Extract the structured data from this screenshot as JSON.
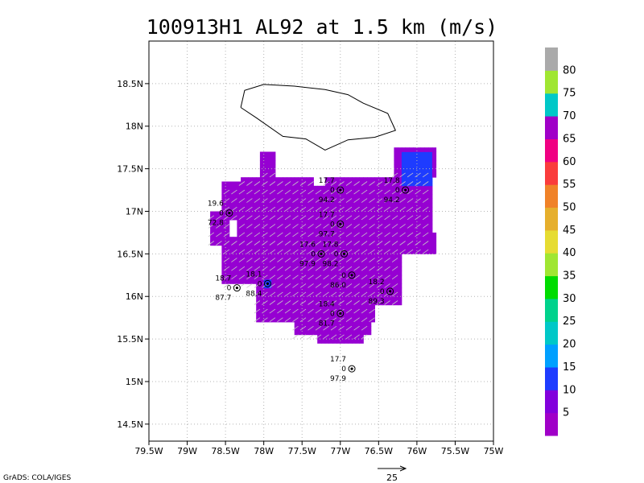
{
  "chart_data": {
    "type": "heatmap",
    "title": "100913H1 AL92 at 1.5 km (m/s)",
    "xlabel": "",
    "ylabel": "",
    "xlim": [
      -79.5,
      -75.0
    ],
    "ylim": [
      14.3,
      19.0
    ],
    "grid": true,
    "x_ticks": [
      "79.5W",
      "79W",
      "78.5W",
      "78W",
      "77.5W",
      "77W",
      "76.5W",
      "76W",
      "75.5W",
      "75W"
    ],
    "x_tick_values": [
      -79.5,
      -79.0,
      -78.5,
      -78.0,
      -77.5,
      -77.0,
      -76.5,
      -76.0,
      -75.5,
      -75.0
    ],
    "y_ticks": [
      "14.5N",
      "15N",
      "15.5N",
      "16N",
      "16.5N",
      "17N",
      "17.5N",
      "18N",
      "18.5N"
    ],
    "y_tick_values": [
      14.5,
      15.0,
      15.5,
      16.0,
      16.5,
      17.0,
      17.5,
      18.0,
      18.5
    ],
    "colorbar": {
      "levels": [
        {
          "label": "",
          "color": "#a000c8"
        },
        {
          "label": "5",
          "color": "#8200dc"
        },
        {
          "label": "10",
          "color": "#1e3cff"
        },
        {
          "label": "15",
          "color": "#00a0ff"
        },
        {
          "label": "20",
          "color": "#00c8c8"
        },
        {
          "label": "25",
          "color": "#00d28c"
        },
        {
          "label": "30",
          "color": "#00dc00"
        },
        {
          "label": "35",
          "color": "#a0e632"
        },
        {
          "label": "40",
          "color": "#e6dc32"
        },
        {
          "label": "45",
          "color": "#e6af2d"
        },
        {
          "label": "50",
          "color": "#f08228"
        },
        {
          "label": "55",
          "color": "#fa3c3c"
        },
        {
          "label": "60",
          "color": "#f00082"
        },
        {
          "label": "65",
          "color": "#a000c8"
        },
        {
          "label": "70",
          "color": "#00c8c8"
        },
        {
          "label": "75",
          "color": "#a0e632"
        },
        {
          "label": "80",
          "color": "#aaaaaa"
        }
      ]
    },
    "observations": [
      {
        "lon": -77.0,
        "lat": 17.25,
        "top": "17.7",
        "mid": "0",
        "bot": "94.2"
      },
      {
        "lon": -76.15,
        "lat": 17.25,
        "top": "17.8",
        "mid": "0",
        "bot": "94.2"
      },
      {
        "lon": -78.45,
        "lat": 16.98,
        "top": "19.6",
        "mid": "0",
        "bot": "72.8"
      },
      {
        "lon": -77.0,
        "lat": 16.85,
        "top": "17.7",
        "mid": "0",
        "bot": "97.7"
      },
      {
        "lon": -77.25,
        "lat": 16.5,
        "top": "17.6",
        "mid": "0",
        "bot": "97.9"
      },
      {
        "lon": -76.95,
        "lat": 16.5,
        "top": "17.8",
        "mid": "0",
        "bot": "98.2"
      },
      {
        "lon": -76.85,
        "lat": 16.25,
        "top": "",
        "mid": "0",
        "bot": "86.0"
      },
      {
        "lon": -78.35,
        "lat": 16.1,
        "top": "18.7",
        "mid": "0",
        "bot": "87.7"
      },
      {
        "lon": -77.95,
        "lat": 16.15,
        "top": "18.1",
        "mid": "0",
        "bot": "88.4"
      },
      {
        "lon": -76.35,
        "lat": 16.06,
        "top": "18.2",
        "mid": "0",
        "bot": "89.3"
      },
      {
        "lon": -77.0,
        "lat": 15.8,
        "top": "18.4",
        "mid": "0",
        "bot": "81.7"
      },
      {
        "lon": -76.85,
        "lat": 15.15,
        "top": "17.7",
        "mid": "0",
        "bot": "97.9"
      }
    ],
    "vector_reference": {
      "label": "25"
    }
  },
  "footer": {
    "credit": "GrADS: COLA/IGES",
    "vector_scale_label": "25"
  },
  "colors": {
    "low_wind": "#9600d2",
    "blue_patch": "#1e3cff",
    "arrows": "#c8c8c8",
    "grid": "#b4b4b4",
    "coast": "#000000"
  }
}
